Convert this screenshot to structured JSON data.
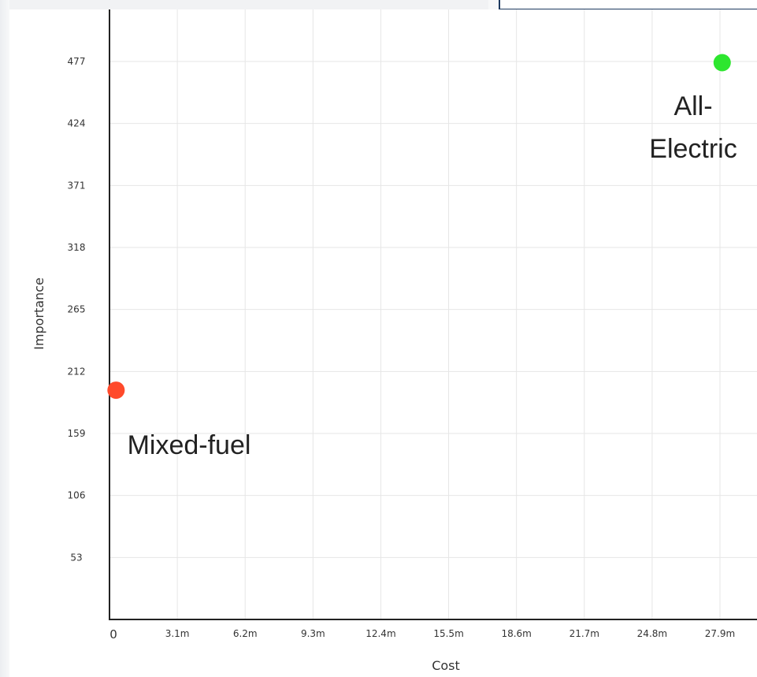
{
  "chart_data": {
    "type": "scatter",
    "xlabel": "Cost",
    "ylabel": "Importance",
    "x_ticks": [
      {
        "value": 0,
        "label": "0"
      },
      {
        "value": 3100000,
        "label": "3.1m"
      },
      {
        "value": 6200000,
        "label": "6.2m"
      },
      {
        "value": 9300000,
        "label": "9.3m"
      },
      {
        "value": 12400000,
        "label": "12.4m"
      },
      {
        "value": 15500000,
        "label": "15.5m"
      },
      {
        "value": 18600000,
        "label": "18.6m"
      },
      {
        "value": 21700000,
        "label": "21.7m"
      },
      {
        "value": 24800000,
        "label": "24.8m"
      },
      {
        "value": 27900000,
        "label": "27.9m"
      }
    ],
    "y_ticks": [
      {
        "value": 53,
        "label": "53"
      },
      {
        "value": 106,
        "label": "106"
      },
      {
        "value": 159,
        "label": "159"
      },
      {
        "value": 212,
        "label": "212"
      },
      {
        "value": 265,
        "label": "265"
      },
      {
        "value": 318,
        "label": "318"
      },
      {
        "value": 371,
        "label": "371"
      },
      {
        "value": 424,
        "label": "424"
      },
      {
        "value": 477,
        "label": "477"
      }
    ],
    "xlim": [
      0,
      30500000
    ],
    "ylim": [
      0,
      540
    ],
    "grid": true,
    "points": [
      {
        "label": "Mixed-fuel",
        "x": 300000,
        "y": 196,
        "color": "#ff4a2b",
        "label_lines": [
          "Mixed-fuel"
        ]
      },
      {
        "label": "All-Electric",
        "x": 28000000,
        "y": 476,
        "color": "#2de62f",
        "label_lines": [
          "All-",
          "Electric"
        ]
      }
    ]
  }
}
